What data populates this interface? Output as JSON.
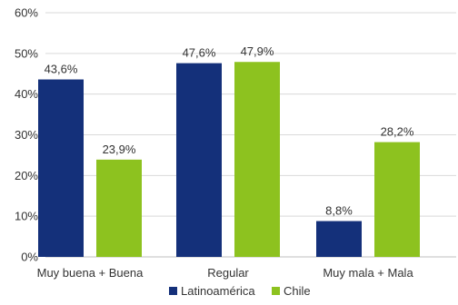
{
  "chart_data": {
    "type": "bar",
    "categories": [
      "Muy buena + Buena",
      "Regular",
      "Muy mala + Mala"
    ],
    "series": [
      {
        "name": "Latinoamérica",
        "color": "#14307a",
        "values": [
          43.6,
          47.6,
          8.8
        ],
        "labels": [
          "43,6%",
          "47,6%",
          "8,8%"
        ]
      },
      {
        "name": "Chile",
        "color": "#8dc21f",
        "values": [
          23.9,
          47.9,
          28.2
        ],
        "labels": [
          "23,9%",
          "47,9%",
          "28,2%"
        ]
      }
    ],
    "ylim": [
      0,
      60
    ],
    "yticks": [
      0,
      10,
      20,
      30,
      40,
      50,
      60
    ],
    "ytick_labels": [
      "0%",
      "10%",
      "20%",
      "30%",
      "40%",
      "50%",
      "60%"
    ],
    "grid": true,
    "legend_position": "bottom-center"
  }
}
